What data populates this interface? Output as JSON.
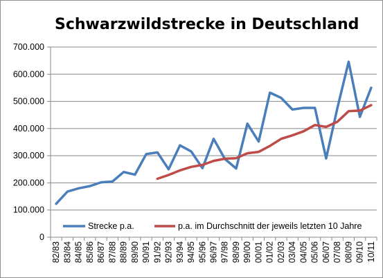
{
  "chart_data": {
    "type": "line",
    "title": "Schwarzwildstrecke in Deutschland",
    "xlabel": "",
    "ylabel": "",
    "ylim": [
      0,
      700000
    ],
    "yticks": [
      "0",
      "100.000",
      "200.000",
      "300.000",
      "400.000",
      "500.000",
      "600.000",
      "700.000"
    ],
    "grid": true,
    "legend_placement": "bottom",
    "categories": [
      "82/83",
      "83/84",
      "84/85",
      "85/86",
      "86/87",
      "87/88",
      "88/89",
      "89/90",
      "90/91",
      "91/92",
      "92/93",
      "93/94",
      "94/95",
      "95/96",
      "96/97",
      "97/98",
      "98/99",
      "99/00",
      "00/01",
      "01/02",
      "02/03",
      "03/04",
      "04/05",
      "05/06",
      "06/07",
      "07/08",
      "08/09",
      "09/10",
      "10/11"
    ],
    "series": [
      {
        "name": "Strecke p.a.",
        "color": "#4a7ebb",
        "values": [
          123000,
          168000,
          180000,
          188000,
          202000,
          205000,
          240000,
          230000,
          306000,
          312000,
          250000,
          338000,
          316000,
          254000,
          362000,
          288000,
          253000,
          418000,
          352000,
          532000,
          513000,
          470000,
          476000,
          476000,
          290000,
          476000,
          646000,
          443000,
          550000
        ]
      },
      {
        "name": "p.a. im Durchschnitt der jeweils letzten 10 Jahre",
        "color": "#be4b48",
        "values": [
          null,
          null,
          null,
          null,
          null,
          null,
          null,
          null,
          null,
          215000,
          229000,
          246000,
          259000,
          266000,
          281000,
          289000,
          291000,
          309000,
          314000,
          336000,
          362000,
          375000,
          390000,
          413000,
          406000,
          425000,
          464000,
          466000,
          486000
        ]
      }
    ]
  }
}
